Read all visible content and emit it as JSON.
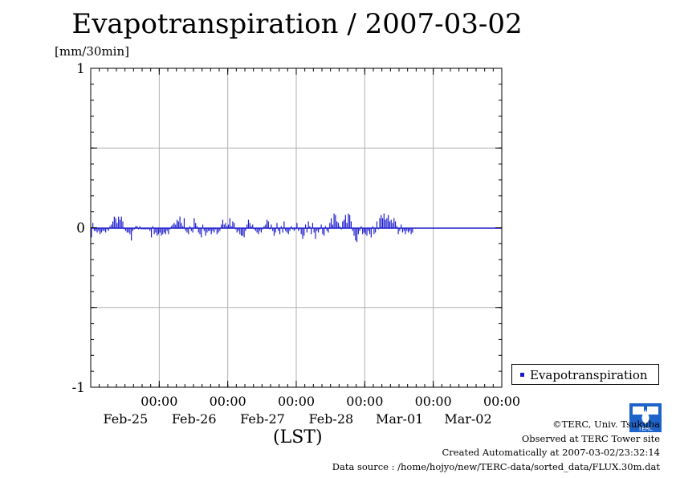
{
  "title": "Evapotranspiration / 2007-03-02",
  "unit_label": "[mm/30min]",
  "x_axis_label": "(LST)",
  "legend_label": "Evapotranspiration",
  "footer": {
    "copyright": "©TERC, Univ. Tsukuba",
    "site": "Observed at TERC Tower site",
    "created": "Created Automatically at 2007-03-02/23:32:14",
    "source": "Data source : /home/hojyo/new/TERC-data/sorted_data/FLUX.30m.dat"
  },
  "logo_text": "TERC",
  "colors": {
    "series": "#1a1acc",
    "grid": "#b0b0b0",
    "zero_line": "#000000"
  },
  "chart_data": {
    "type": "bar",
    "title": "Evapotranspiration / 2007-03-02",
    "xlabel": "(LST)",
    "ylabel": "[mm/30min]",
    "ylim": [
      -1,
      1
    ],
    "y_ticks": [
      {
        "value": 1,
        "label": "1"
      },
      {
        "value": 0,
        "label": "0"
      },
      {
        "value": -1,
        "label": "-1"
      }
    ],
    "y_grid": [
      -0.5,
      0.5
    ],
    "x_range_days": [
      0,
      6
    ],
    "x_ticks": [
      {
        "pos": 1,
        "time": "00:00",
        "date": "Feb-25"
      },
      {
        "pos": 2,
        "time": "00:00",
        "date": "Feb-26"
      },
      {
        "pos": 3,
        "time": "00:00",
        "date": "Feb-27"
      },
      {
        "pos": 4,
        "time": "00:00",
        "date": "Feb-28"
      },
      {
        "pos": 5,
        "time": "00:00",
        "date": "Mar-01"
      },
      {
        "pos": 6,
        "time": "00:00",
        "date": "Mar-02"
      }
    ],
    "grid": true,
    "legend_position": "outside-right",
    "series": [
      {
        "name": "Evapotranspiration",
        "interval_days": 0.0208333,
        "values": [
          -0.06,
          0.03,
          -0.02,
          -0.02,
          -0.03,
          -0.02,
          -0.04,
          -0.03,
          -0.02,
          -0.02,
          -0.03,
          -0.01,
          -0.02,
          0.01,
          0.02,
          0.04,
          0.07,
          0.06,
          0.03,
          0.07,
          0.05,
          0.07,
          0.04,
          -0.01,
          -0.02,
          -0.03,
          -0.03,
          -0.04,
          -0.08,
          -0.02,
          -0.01,
          0.01,
          0.01,
          -0.01,
          0.01,
          -0.01,
          -0.01,
          -0.01,
          -0.01,
          -0.01,
          -0.01,
          -0.02,
          -0.06,
          0.01,
          -0.04,
          -0.03,
          -0.05,
          -0.04,
          -0.03,
          -0.05,
          -0.04,
          -0.03,
          -0.04,
          -0.02,
          -0.04,
          -0.01,
          0.01,
          0.02,
          0.03,
          0.02,
          0.05,
          0.04,
          0.07,
          0.03,
          0.01,
          0.06,
          -0.02,
          -0.03,
          -0.04,
          0.01,
          -0.02,
          -0.03,
          0.06,
          0.03,
          0.01,
          -0.03,
          -0.04,
          -0.06,
          0.02,
          -0.02,
          -0.05,
          -0.03,
          -0.02,
          -0.02,
          -0.04,
          -0.02,
          -0.03,
          -0.01,
          -0.04,
          -0.03,
          -0.02,
          0.02,
          0.05,
          0.02,
          0.03,
          0.01,
          0.02,
          0.06,
          0.01,
          0.04,
          0.03,
          -0.01,
          -0.03,
          -0.02,
          -0.04,
          -0.05,
          -0.05,
          -0.06,
          -0.02,
          0.02,
          0.05,
          0.03,
          0.01,
          0.02,
          -0.01,
          -0.02,
          -0.03,
          -0.04,
          -0.02,
          -0.03,
          -0.01,
          0.01,
          0.02,
          0.05,
          0.04,
          -0.01,
          0.02,
          -0.02,
          -0.05,
          -0.03,
          0.03,
          -0.02,
          -0.04,
          0.01,
          -0.03,
          0.04,
          -0.02,
          -0.03,
          -0.04,
          -0.02,
          0.01,
          -0.01,
          -0.02,
          -0.01,
          0.03,
          -0.02,
          -0.01,
          -0.04,
          -0.07,
          -0.05,
          0.02,
          -0.03,
          0.04,
          0.01,
          -0.04,
          0.03,
          -0.03,
          -0.07,
          -0.02,
          -0.03,
          -0.01,
          0.02,
          -0.04,
          -0.05,
          0.01,
          -0.02,
          -0.03,
          0.03,
          0.06,
          0.02,
          0.09,
          0.08,
          0.04,
          0.03,
          0.01,
          -0.01,
          0.04,
          0.05,
          0.08,
          0.03,
          0.09,
          0.08,
          0.04,
          -0.02,
          -0.05,
          -0.08,
          -0.09,
          -0.04,
          -0.02,
          0.01,
          -0.04,
          -0.03,
          -0.04,
          -0.05,
          -0.02,
          -0.04,
          -0.06,
          0.01,
          -0.04,
          -0.03,
          0.04,
          -0.01,
          0.06,
          0.08,
          0.06,
          0.09,
          0.05,
          0.06,
          0.08,
          0.04,
          0.05,
          0.03,
          0.06,
          0.04,
          0.01,
          -0.04,
          -0.02,
          0.02,
          -0.03,
          -0.02,
          -0.04,
          -0.02,
          -0.03,
          -0.02,
          -0.04,
          -0.03
        ]
      }
    ]
  }
}
